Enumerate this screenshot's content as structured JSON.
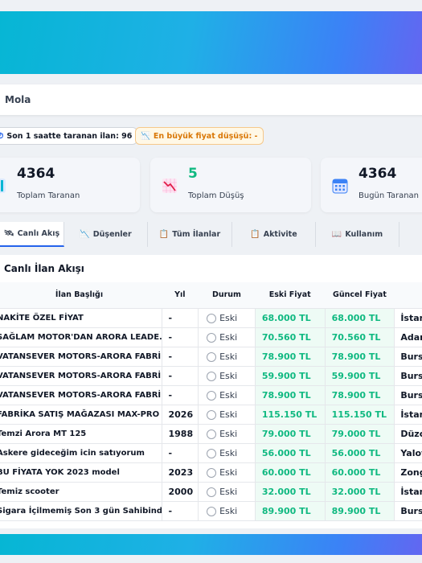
{
  "header": {
    "status_text": "Mola"
  },
  "pills": {
    "scan_label": "Son 1 saatte taranan ilan: 96",
    "drop_label": "En büyük fiyat düşüşü: -"
  },
  "stats": [
    {
      "value": "4364",
      "label": "Toplam Taranan",
      "icon": "bar-chart-icon"
    },
    {
      "value": "5",
      "label": "Toplam Düşüş",
      "icon": "chart-down-icon"
    },
    {
      "value": "4364",
      "label": "Bugün Taranan",
      "icon": "calendar-icon"
    }
  ],
  "tabs": [
    {
      "label": "Canlı Akış",
      "icon": "🛰"
    },
    {
      "label": "Düşenler",
      "icon": "📉"
    },
    {
      "label": "Tüm İlanlar",
      "icon": "📋"
    },
    {
      "label": "Aktivite",
      "icon": "📋"
    },
    {
      "label": "Kullanım",
      "icon": "📖"
    }
  ],
  "feed": {
    "title": "Canlı İlan Akışı",
    "columns": [
      "İlan Başlığı",
      "Yıl",
      "Durum",
      "Eski Fiyat",
      "Güncel Fiyat"
    ],
    "rows": [
      {
        "title": "NAKİTE ÖZEL FİYAT",
        "year": "-",
        "status": "Eski",
        "old": "68.000 TL",
        "new": "68.000 TL",
        "city": "İstan"
      },
      {
        "title": "SAĞLAM MOTOR'DAN ARORA LEADE...",
        "year": "-",
        "status": "Eski",
        "old": "70.560 TL",
        "new": "70.560 TL",
        "city": "Adan"
      },
      {
        "title": "VATANSEVER MOTORS-ARORA FABRİK...",
        "year": "-",
        "status": "Eski",
        "old": "78.900 TL",
        "new": "78.900 TL",
        "city": "Bursa"
      },
      {
        "title": "VATANSEVER MOTORS-ARORA FABRİK...",
        "year": "-",
        "status": "Eski",
        "old": "59.900 TL",
        "new": "59.900 TL",
        "city": "Bursa"
      },
      {
        "title": "VATANSEVER MOTORS-ARORA FABRİK...",
        "year": "-",
        "status": "Eski",
        "old": "78.900 TL",
        "new": "78.900 TL",
        "city": "Bursa"
      },
      {
        "title": "FABRİKA SATIŞ MAĞAZASI MAX-PRO ...",
        "year": "2026",
        "status": "Eski",
        "old": "115.150 TL",
        "new": "115.150 TL",
        "city": "İstan"
      },
      {
        "title": "Temzi Arora MT 125",
        "year": "1988",
        "status": "Eski",
        "old": "79.000 TL",
        "new": "79.000 TL",
        "city": "Düzc"
      },
      {
        "title": "Askere gideceğim icin satıyorum",
        "year": "-",
        "status": "Eski",
        "old": "56.000 TL",
        "new": "56.000 TL",
        "city": "Yalov"
      },
      {
        "title": "BU FİYATA YOK 2023 model",
        "year": "2023",
        "status": "Eski",
        "old": "60.000 TL",
        "new": "60.000 TL",
        "city": "Zong"
      },
      {
        "title": "Temiz scooter",
        "year": "2000",
        "status": "Eski",
        "old": "32.000 TL",
        "new": "32.000 TL",
        "city": "İstan"
      },
      {
        "title": "Sigara İçilmemiş Son 3 gün Sahibinden...",
        "year": "-",
        "status": "Eski",
        "old": "89.900 TL",
        "new": "89.900 TL",
        "city": "Bursa"
      }
    ]
  }
}
